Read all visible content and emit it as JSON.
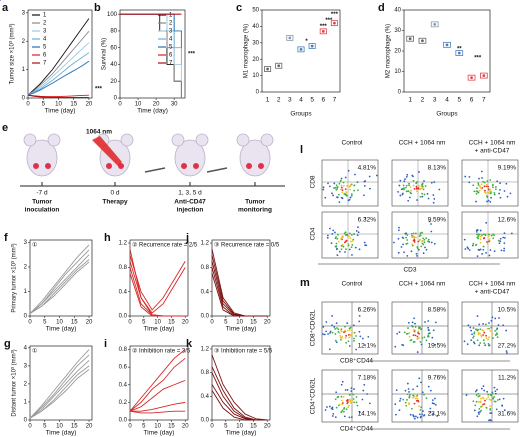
{
  "chart_data": [
    {
      "type": "line",
      "panel_label": "a",
      "y_label": "Tumor size ×10³ (mm³)",
      "x_label": "Time (day)",
      "x": [
        0,
        2,
        4,
        6,
        8,
        10,
        12,
        14,
        16,
        18,
        20
      ],
      "xlim": [
        0,
        21
      ],
      "xticks": [
        0,
        5,
        10,
        15,
        20
      ],
      "ylim": [
        0,
        3.1
      ],
      "yticks": [
        0,
        1,
        2,
        3
      ],
      "legend": "upper left",
      "annotations": [
        "***"
      ],
      "series": [
        {
          "name": "1",
          "color": "#111111",
          "values": [
            0.1,
            0.3,
            0.5,
            0.75,
            1.0,
            1.3,
            1.6,
            1.9,
            2.2,
            2.5,
            2.8
          ]
        },
        {
          "name": "2",
          "color": "#888888",
          "values": [
            0.1,
            0.25,
            0.45,
            0.65,
            0.85,
            1.1,
            1.35,
            1.6,
            1.85,
            2.1,
            2.35
          ]
        },
        {
          "name": "3",
          "color": "#9ecae1",
          "values": [
            0.1,
            0.22,
            0.38,
            0.55,
            0.75,
            0.95,
            1.15,
            1.35,
            1.55,
            1.75,
            1.95
          ]
        },
        {
          "name": "4",
          "color": "#6baed6",
          "values": [
            0.1,
            0.2,
            0.32,
            0.47,
            0.62,
            0.8,
            0.97,
            1.15,
            1.3,
            1.45,
            1.6
          ]
        },
        {
          "name": "5",
          "color": "#2171b5",
          "values": [
            0.1,
            0.18,
            0.28,
            0.4,
            0.52,
            0.65,
            0.78,
            0.9,
            1.02,
            1.15,
            1.3
          ]
        },
        {
          "name": "6",
          "color": "#e41a1c",
          "values": [
            0.1,
            0.08,
            0.06,
            0.05,
            0.05,
            0.05,
            0.06,
            0.07,
            0.08,
            0.09,
            0.1
          ]
        },
        {
          "name": "7",
          "color": "#a50f15",
          "values": [
            0.1,
            0.06,
            0.04,
            0.03,
            0.02,
            0.02,
            0.02,
            0.02,
            0.02,
            0.02,
            0.02
          ]
        }
      ]
    },
    {
      "type": "line",
      "drawstyle": "steps-post",
      "panel_label": "b",
      "y_label": "Survival (%)",
      "x_label": "Time (day)",
      "x": [
        0,
        18,
        22,
        26,
        30,
        34
      ],
      "xlim": [
        0,
        36
      ],
      "xticks": [
        0,
        10,
        20,
        30
      ],
      "ylim": [
        0,
        105
      ],
      "yticks": [
        0,
        20,
        40,
        60,
        80,
        100
      ],
      "legend": "center right",
      "annotations": [
        "***"
      ],
      "series": [
        {
          "name": "1",
          "color": "#111111",
          "values": [
            100,
            100,
            80,
            40,
            20,
            0
          ]
        },
        {
          "name": "2",
          "color": "#888888",
          "values": [
            100,
            100,
            100,
            60,
            20,
            0
          ]
        },
        {
          "name": "3",
          "color": "#9ecae1",
          "values": [
            100,
            100,
            100,
            80,
            40,
            20
          ]
        },
        {
          "name": "4",
          "color": "#6baed6",
          "values": [
            100,
            100,
            100,
            100,
            60,
            40
          ]
        },
        {
          "name": "5",
          "color": "#2171b5",
          "values": [
            100,
            100,
            100,
            100,
            80,
            60
          ]
        },
        {
          "name": "6",
          "color": "#e41a1c",
          "values": [
            100,
            100,
            100,
            100,
            100,
            100
          ]
        },
        {
          "name": "7",
          "color": "#a50f15",
          "values": [
            100,
            100,
            100,
            100,
            100,
            100
          ]
        }
      ]
    },
    {
      "type": "dot",
      "panel_label": "c",
      "y_label": "M1 macrophage (%)",
      "x_label": "Groups",
      "categories": [
        "1",
        "2",
        "3",
        "4",
        "5",
        "6",
        "7"
      ],
      "values": [
        14,
        16,
        33,
        26,
        28,
        37,
        42
      ],
      "colors": [
        "#666666",
        "#666666",
        "#8899aa",
        "#4a7fc0",
        "#4a7fc0",
        "#e0454a",
        "#e0454a"
      ],
      "ylim": [
        0,
        50
      ],
      "yticks": [
        0,
        10,
        20,
        30,
        40,
        50
      ],
      "annotations": [
        "*",
        "***",
        "***",
        "***"
      ]
    },
    {
      "type": "dot",
      "panel_label": "d",
      "y_label": "M2 macrophage (%)",
      "x_label": "Groups",
      "categories": [
        "1",
        "2",
        "3",
        "4",
        "5",
        "6",
        "7"
      ],
      "values": [
        26,
        25,
        33,
        23,
        19,
        7,
        8
      ],
      "colors": [
        "#666666",
        "#666666",
        "#8899aa",
        "#4a7fc0",
        "#4a7fc0",
        "#e0454a",
        "#e0454a"
      ],
      "ylim": [
        0,
        40
      ],
      "yticks": [
        0,
        10,
        20,
        30,
        40
      ],
      "annotations": [
        "**",
        "***"
      ]
    },
    {
      "type": "line",
      "panel_label": "f",
      "title": "①",
      "y_label": "Primary tumor ×10³ (mm³)",
      "x_label": "Time (day)",
      "x": [
        0,
        4,
        8,
        12,
        16,
        20
      ],
      "xlim": [
        0,
        21
      ],
      "xticks": [
        0,
        5,
        10,
        15,
        20
      ],
      "ylim": [
        0,
        3.1
      ],
      "yticks": [
        0,
        1,
        2,
        3
      ],
      "series": [
        {
          "color": "#999999",
          "values": [
            0.1,
            0.6,
            1.2,
            1.8,
            2.4,
            2.9
          ]
        },
        {
          "color": "#999999",
          "values": [
            0.1,
            0.5,
            1.1,
            1.7,
            2.2,
            2.7
          ]
        },
        {
          "color": "#999999",
          "values": [
            0.1,
            0.5,
            1.0,
            1.5,
            2.0,
            2.5
          ]
        },
        {
          "color": "#999999",
          "values": [
            0.1,
            0.4,
            0.9,
            1.4,
            1.9,
            2.3
          ]
        },
        {
          "color": "#999999",
          "values": [
            0.1,
            0.4,
            0.8,
            1.3,
            1.8,
            2.2
          ]
        }
      ]
    },
    {
      "type": "line",
      "panel_label": "g",
      "title": "①",
      "y_label": "Distant tumor ×10³ (mm³)",
      "x_label": "Time (day)",
      "x": [
        0,
        4,
        8,
        12,
        16,
        20
      ],
      "xlim": [
        0,
        21
      ],
      "xticks": [
        0,
        5,
        10,
        15,
        20
      ],
      "ylim": [
        0,
        4.1
      ],
      "yticks": [
        0,
        1,
        2,
        3,
        4
      ],
      "series": [
        {
          "color": "#999999",
          "values": [
            0.1,
            0.8,
            1.6,
            2.4,
            3.2,
            3.9
          ]
        },
        {
          "color": "#999999",
          "values": [
            0.1,
            0.7,
            1.4,
            2.2,
            3.0,
            3.6
          ]
        },
        {
          "color": "#999999",
          "values": [
            0.1,
            0.6,
            1.3,
            2.0,
            2.7,
            3.3
          ]
        },
        {
          "color": "#999999",
          "values": [
            0.1,
            0.5,
            1.1,
            1.8,
            2.5,
            3.0
          ]
        },
        {
          "color": "#999999",
          "values": [
            0.1,
            0.5,
            1.0,
            1.6,
            2.3,
            2.8
          ]
        }
      ]
    },
    {
      "type": "line",
      "panel_label": "h",
      "title": "② Recurrence rate = 2/5",
      "x_label": "Time (day)",
      "x": [
        0,
        4,
        8,
        12,
        16,
        20
      ],
      "xlim": [
        0,
        21
      ],
      "xticks": [
        0,
        5,
        10,
        15,
        20
      ],
      "ylim": [
        0,
        1.25
      ],
      "yticks": [
        {
          "value": 0,
          "label": "0.0"
        },
        0.4,
        0.8,
        1.2
      ],
      "series": [
        {
          "color": "#d62728",
          "values": [
            1.0,
            0.4,
            0.1,
            0.3,
            0.6,
            0.9
          ]
        },
        {
          "color": "#d62728",
          "values": [
            0.9,
            0.3,
            0.05,
            0.2,
            0.5,
            0.8
          ]
        },
        {
          "color": "#d62728",
          "values": [
            1.1,
            0.3,
            0.02,
            0,
            0,
            0
          ]
        },
        {
          "color": "#d62728",
          "values": [
            0.8,
            0.2,
            0.02,
            0,
            0,
            0
          ]
        },
        {
          "color": "#d62728",
          "values": [
            0.7,
            0.15,
            0,
            0,
            0,
            0
          ]
        }
      ]
    },
    {
      "type": "line",
      "panel_label": "i",
      "title": "② Inhibition rate = 3/5",
      "x_label": "Time (day)",
      "x": [
        0,
        4,
        8,
        12,
        16,
        20
      ],
      "xlim": [
        0,
        21
      ],
      "xticks": [
        0,
        5,
        10,
        15,
        20
      ],
      "ylim": [
        0,
        0.84
      ],
      "yticks": [
        {
          "value": 0,
          "label": "0.0"
        },
        0.2,
        0.4,
        0.6,
        0.8
      ],
      "series": [
        {
          "color": "#d62728",
          "values": [
            0.1,
            0.25,
            0.4,
            0.55,
            0.7,
            0.8
          ]
        },
        {
          "color": "#d62728",
          "values": [
            0.1,
            0.2,
            0.35,
            0.45,
            0.6,
            0.7
          ]
        },
        {
          "color": "#d62728",
          "values": [
            0.1,
            0.15,
            0.25,
            0.35,
            0.4,
            0.45
          ]
        },
        {
          "color": "#d62728",
          "values": [
            0.1,
            0.1,
            0.12,
            0.15,
            0.18,
            0.2
          ]
        },
        {
          "color": "#d62728",
          "values": [
            0.1,
            0.08,
            0.08,
            0.09,
            0.1,
            0.1
          ]
        }
      ]
    },
    {
      "type": "line",
      "panel_label": "j",
      "title": "③ Recurrence rate = 0/5",
      "x_label": "Time (day)",
      "x": [
        0,
        4,
        8,
        12,
        16,
        20
      ],
      "xlim": [
        0,
        21
      ],
      "xticks": [
        0,
        5,
        10,
        15,
        20
      ],
      "ylim": [
        0,
        1.25
      ],
      "yticks": [
        {
          "value": 0,
          "label": "0.0"
        },
        0.4,
        0.8,
        1.2
      ],
      "series": [
        {
          "color": "#7a1010",
          "values": [
            1.1,
            0.3,
            0.05,
            0,
            0,
            0
          ]
        },
        {
          "color": "#7a1010",
          "values": [
            1.0,
            0.25,
            0.03,
            0,
            0,
            0
          ]
        },
        {
          "color": "#7a1010",
          "values": [
            0.9,
            0.2,
            0.02,
            0,
            0,
            0
          ]
        },
        {
          "color": "#7a1010",
          "values": [
            0.8,
            0.15,
            0,
            0,
            0,
            0
          ]
        },
        {
          "color": "#7a1010",
          "values": [
            0.7,
            0.1,
            0,
            0,
            0,
            0
          ]
        }
      ]
    },
    {
      "type": "line",
      "panel_label": "k",
      "title": "③ Inhibition rate = 5/5",
      "x_label": "Time (day)",
      "x": [
        0,
        4,
        8,
        12,
        16,
        20
      ],
      "xlim": [
        0,
        21
      ],
      "xticks": [
        0,
        5,
        10,
        15,
        20
      ],
      "ylim": [
        0,
        1.25
      ],
      "yticks": [
        {
          "value": 0,
          "label": "0.0"
        },
        0.4,
        0.8,
        1.2
      ],
      "series": [
        {
          "color": "#7a1010",
          "values": [
            1.1,
            0.6,
            0.3,
            0.1,
            0.02,
            0
          ]
        },
        {
          "color": "#7a1010",
          "values": [
            0.9,
            0.5,
            0.2,
            0.05,
            0,
            0
          ]
        },
        {
          "color": "#7a1010",
          "values": [
            0.8,
            0.4,
            0.15,
            0.03,
            0,
            0
          ]
        },
        {
          "color": "#7a1010",
          "values": [
            0.6,
            0.3,
            0.1,
            0.02,
            0,
            0
          ]
        },
        {
          "color": "#7a1010",
          "values": [
            0.5,
            0.2,
            0.05,
            0,
            0,
            0
          ]
        }
      ]
    }
  ],
  "schematic": {
    "panel_label": "e",
    "laser": "1064 nm",
    "steps": [
      {
        "time": "-7 d",
        "name": [
          "Tumor",
          "inoculation"
        ]
      },
      {
        "time": "0 d",
        "name": [
          "Therapy"
        ]
      },
      {
        "time": "1, 3, 5  d",
        "name": [
          "Anti-CD47",
          "injection"
        ]
      },
      {
        "time": "",
        "name": [
          "Tumor",
          "monitoring"
        ]
      }
    ]
  },
  "flow_l": {
    "panel_label": "l",
    "columns": [
      [
        "Control"
      ],
      [
        "CCH + 1064 nm"
      ],
      [
        "CCH + 1064 nm",
        "+ anti-CD47"
      ]
    ],
    "y_axes": [
      "CD8",
      "CD4"
    ],
    "x_axis": "CD3",
    "cells": [
      [
        "4.81%",
        "8.13%",
        "9.19%"
      ],
      [
        "6.32%",
        "9.59%",
        "12.6%"
      ]
    ]
  },
  "flow_m": {
    "panel_label": "m",
    "columns": [
      [
        "Control"
      ],
      [
        "CCH + 1064 nm"
      ],
      [
        "CCH + 1064 nm",
        "+ anti-CD47"
      ]
    ],
    "rows": [
      {
        "y_axis": "CD8⁺CD62L",
        "x_axis": "CD8⁺CD44",
        "upper": [
          "6.26%",
          "8.58%",
          "10.5%"
        ],
        "lower": [
          "12.1%",
          "19.5%",
          "27.2%"
        ]
      },
      {
        "y_axis": "CD4⁺CD62L",
        "x_axis": "CD4⁺CD44",
        "upper": [
          "7.18%",
          "9.76%",
          "11.2%"
        ],
        "lower": [
          "14.1%",
          "23.1%",
          "31.6%"
        ]
      }
    ]
  }
}
